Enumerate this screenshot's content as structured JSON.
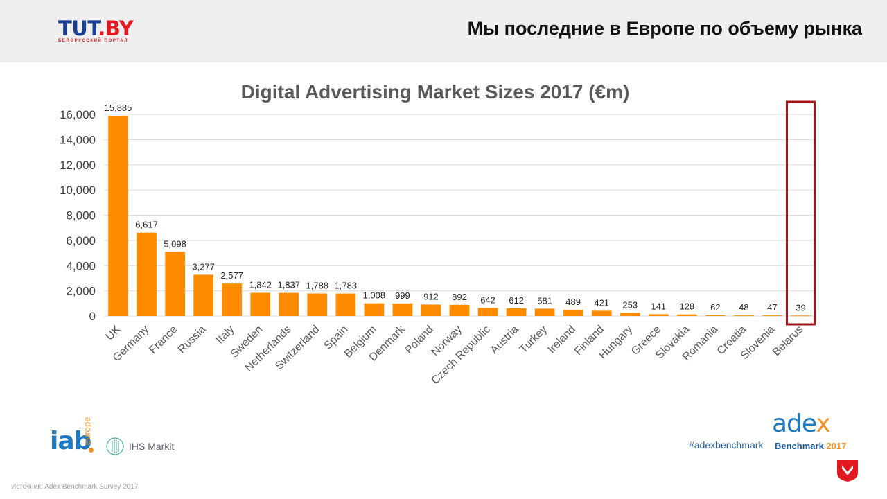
{
  "header": {
    "logo_main_a": "TUT",
    "logo_main_b": ".BY",
    "logo_sub": "БЕЛОРУССКИЙ ПОРТАЛ",
    "title": "Мы последние в Европе по объему рынка"
  },
  "chart_data": {
    "type": "bar",
    "title": "Digital Advertising Market Sizes 2017 (€m)",
    "categories": [
      "UK",
      "Germany",
      "France",
      "Russia",
      "Italy",
      "Sweden",
      "Netherlands",
      "Switzerland",
      "Spain",
      "Belgium",
      "Denmark",
      "Poland",
      "Norway",
      "Czech Republic",
      "Austria",
      "Turkey",
      "Ireland",
      "Finland",
      "Hungary",
      "Greece",
      "Slovakia",
      "Romania",
      "Croatia",
      "Slovenia",
      "Belarus"
    ],
    "values": [
      15885,
      6617,
      5098,
      3277,
      2577,
      1842,
      1837,
      1788,
      1783,
      1008,
      999,
      912,
      892,
      642,
      612,
      581,
      489,
      421,
      253,
      141,
      128,
      62,
      48,
      47,
      39
    ],
    "value_labels": [
      "15,885",
      "6,617",
      "5,098",
      "3,277",
      "2,577",
      "1,842",
      "1,837",
      "1,788",
      "1,783",
      "1,008",
      "999",
      "912",
      "892",
      "642",
      "612",
      "581",
      "489",
      "421",
      "253",
      "141",
      "128",
      "62",
      "48",
      "47",
      "39"
    ],
    "yticks": [
      "0",
      "2,000",
      "4,000",
      "6,000",
      "8,000",
      "10,000",
      "12,000",
      "14,000",
      "16,000"
    ],
    "ytick_values": [
      0,
      2000,
      4000,
      6000,
      8000,
      10000,
      12000,
      14000,
      16000
    ],
    "ylim": [
      0,
      16000
    ],
    "grid": true,
    "highlight_category": "Belarus",
    "bar_color": "#ff8c00",
    "highlight_color": "#a01419"
  },
  "footer": {
    "iab": "iab",
    "iab_europe": "europe",
    "ihs": "IHS Markit",
    "hashtag": "#adexbenchmark",
    "adex_a": "ade",
    "adex_b": "x",
    "adex_sub_a": "Benchmark",
    "adex_sub_b": "2017",
    "source": "Источник: Adex Benchmark Survey 2017"
  },
  "colors": {
    "brand_blue": "#1a3e91",
    "brand_red": "#e11a22",
    "header_bg": "#efefef"
  }
}
